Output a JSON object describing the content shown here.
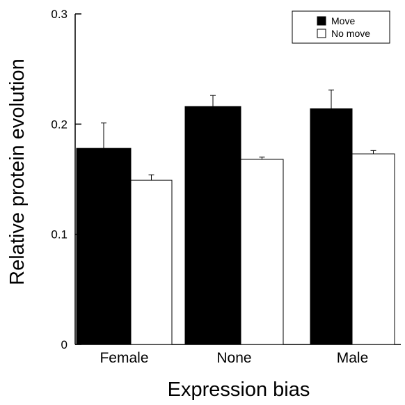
{
  "chart_data": {
    "type": "bar",
    "categories": [
      "Female",
      "None",
      "Male"
    ],
    "series": [
      {
        "name": "Move",
        "color": "#000000",
        "values": [
          0.178,
          0.216,
          0.214
        ],
        "errors": [
          0.023,
          0.01,
          0.017
        ]
      },
      {
        "name": "No move",
        "color": "#ffffff",
        "values": [
          0.149,
          0.168,
          0.173
        ],
        "errors": [
          0.005,
          0.002,
          0.003
        ]
      }
    ],
    "title": "",
    "xlabel": "Expression bias",
    "ylabel": "Relative protein evolution",
    "ylim": [
      0,
      0.3
    ],
    "yticks": [
      0,
      0.1,
      0.2,
      0.3
    ],
    "ytick_labels": [
      "0",
      "0.1",
      "0.2",
      "0.3"
    ],
    "legend_position": "top-right",
    "grid": false
  }
}
